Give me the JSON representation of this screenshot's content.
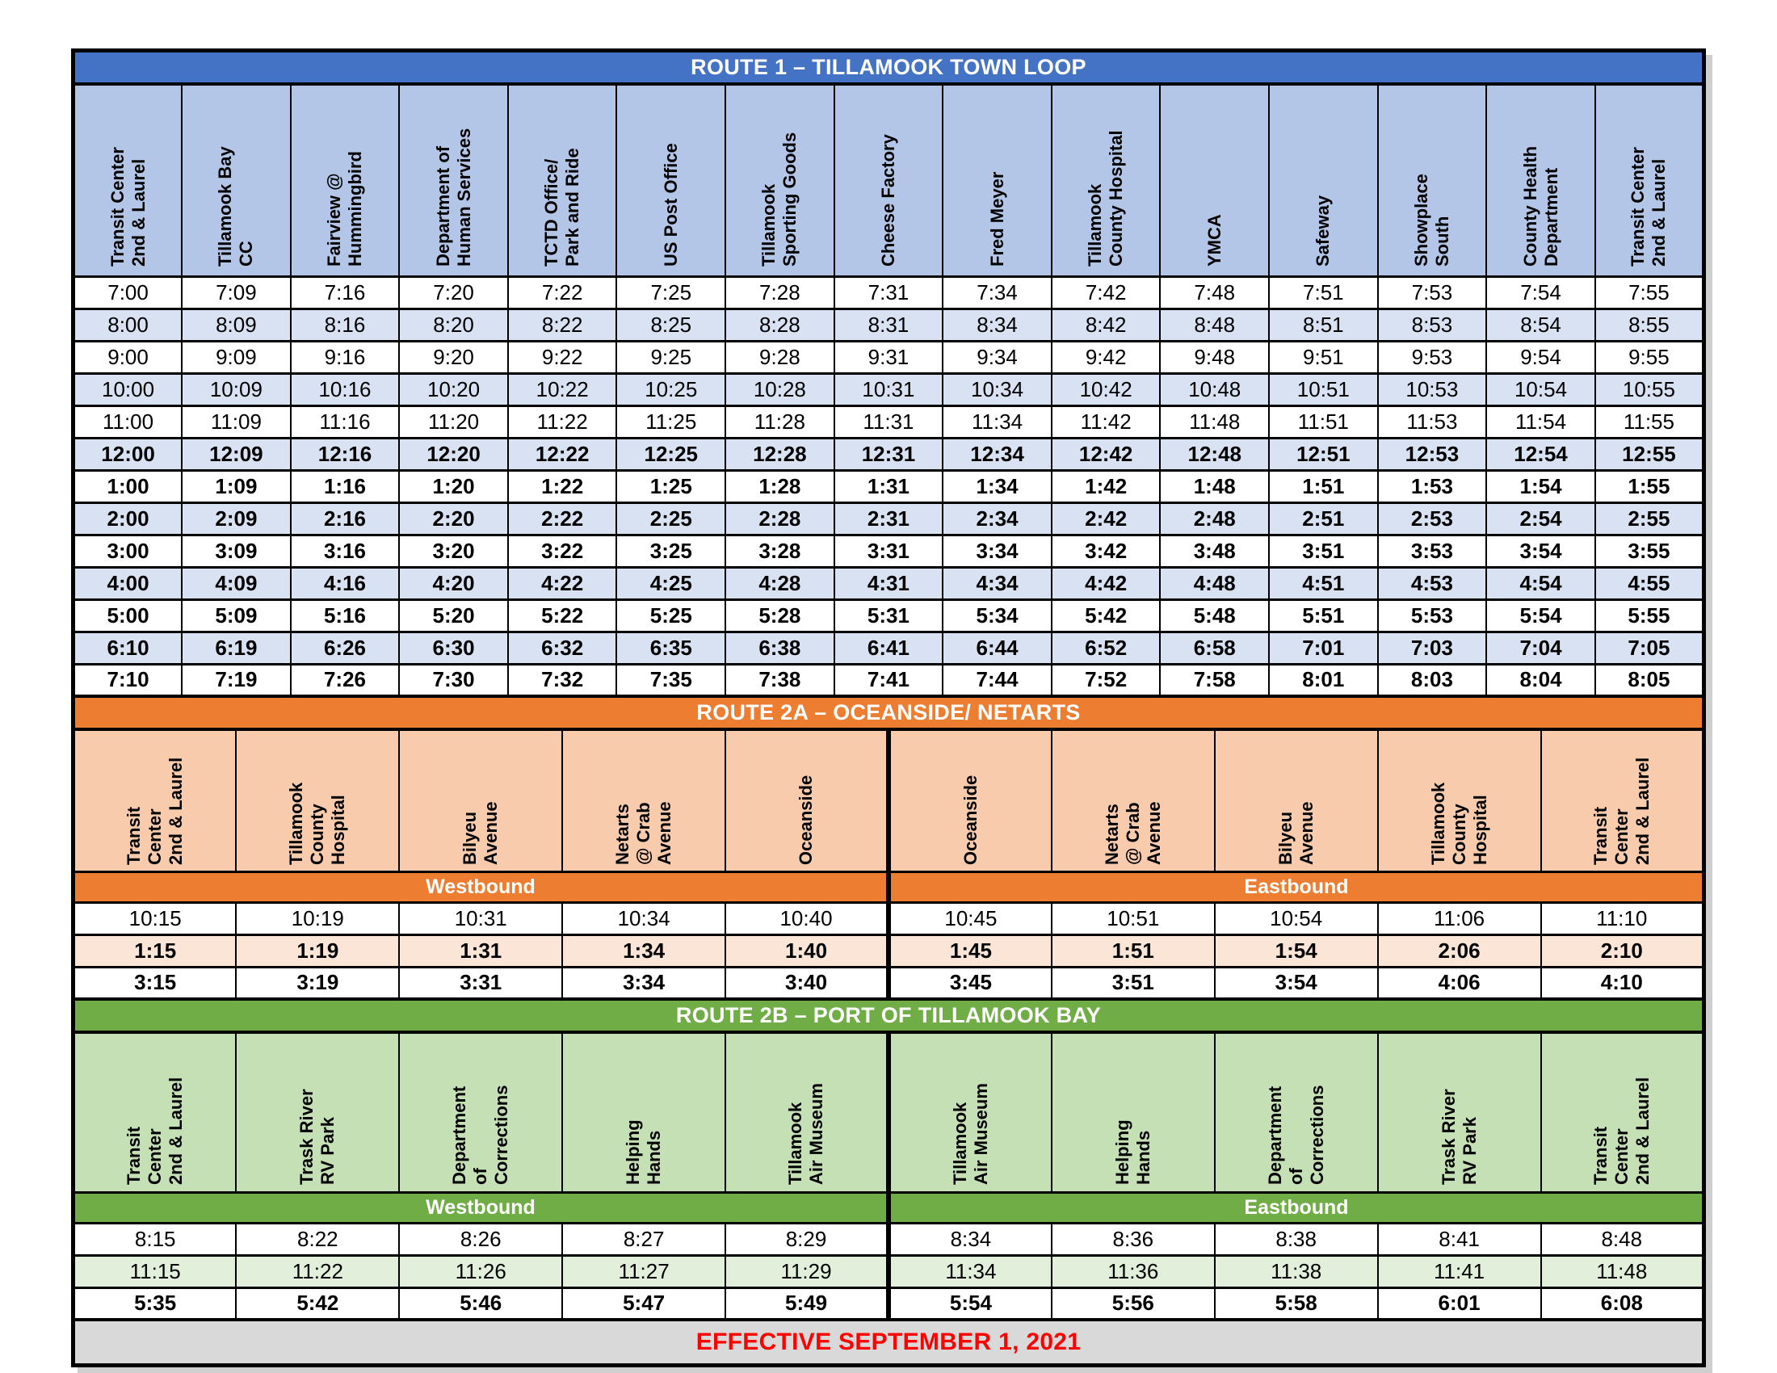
{
  "colors": {
    "route1_title_bg": "#4472C4",
    "route1_header_bg": "#B4C6E7",
    "route1_shaded_row_bg": "#D9E2F3",
    "route2a_title_bg": "#ED7D31",
    "route2a_header_bg": "#F8CBAD",
    "route2a_shaded_row_bg": "#FBE5D6",
    "route2b_title_bg": "#70AD47",
    "route2b_header_bg": "#C5E0B4",
    "route2b_shaded_row_bg": "#E2EFDA",
    "footer_bg": "#D9D9D9",
    "footer_text": "#FF0000",
    "border": "#000000",
    "title_text": "#FFFFFF"
  },
  "route1": {
    "title": "ROUTE 1 – TILLAMOOK TOWN LOOP",
    "stops": [
      "Transit Center\n2nd & Laurel",
      "Tillamook Bay\nCC",
      "Fairview @\nHummingbird",
      "Department of\nHuman Services",
      "TCTD Office/\nPark and Ride",
      "US Post Office",
      "Tillamook\nSporting Goods",
      "Cheese Factory",
      "Fred Meyer",
      "Tillamook\nCounty Hospital",
      "YMCA",
      "Safeway",
      "Showplace\nSouth",
      "County Health\nDepartment",
      "Transit Center\n2nd & Laurel"
    ],
    "rows": [
      {
        "bold": false,
        "shaded": false,
        "times": [
          "7:00",
          "7:09",
          "7:16",
          "7:20",
          "7:22",
          "7:25",
          "7:28",
          "7:31",
          "7:34",
          "7:42",
          "7:48",
          "7:51",
          "7:53",
          "7:54",
          "7:55"
        ]
      },
      {
        "bold": false,
        "shaded": true,
        "times": [
          "8:00",
          "8:09",
          "8:16",
          "8:20",
          "8:22",
          "8:25",
          "8:28",
          "8:31",
          "8:34",
          "8:42",
          "8:48",
          "8:51",
          "8:53",
          "8:54",
          "8:55"
        ]
      },
      {
        "bold": false,
        "shaded": false,
        "times": [
          "9:00",
          "9:09",
          "9:16",
          "9:20",
          "9:22",
          "9:25",
          "9:28",
          "9:31",
          "9:34",
          "9:42",
          "9:48",
          "9:51",
          "9:53",
          "9:54",
          "9:55"
        ]
      },
      {
        "bold": false,
        "shaded": true,
        "times": [
          "10:00",
          "10:09",
          "10:16",
          "10:20",
          "10:22",
          "10:25",
          "10:28",
          "10:31",
          "10:34",
          "10:42",
          "10:48",
          "10:51",
          "10:53",
          "10:54",
          "10:55"
        ]
      },
      {
        "bold": false,
        "shaded": false,
        "times": [
          "11:00",
          "11:09",
          "11:16",
          "11:20",
          "11:22",
          "11:25",
          "11:28",
          "11:31",
          "11:34",
          "11:42",
          "11:48",
          "11:51",
          "11:53",
          "11:54",
          "11:55"
        ]
      },
      {
        "bold": true,
        "shaded": true,
        "times": [
          "12:00",
          "12:09",
          "12:16",
          "12:20",
          "12:22",
          "12:25",
          "12:28",
          "12:31",
          "12:34",
          "12:42",
          "12:48",
          "12:51",
          "12:53",
          "12:54",
          "12:55"
        ]
      },
      {
        "bold": true,
        "shaded": false,
        "times": [
          "1:00",
          "1:09",
          "1:16",
          "1:20",
          "1:22",
          "1:25",
          "1:28",
          "1:31",
          "1:34",
          "1:42",
          "1:48",
          "1:51",
          "1:53",
          "1:54",
          "1:55"
        ]
      },
      {
        "bold": true,
        "shaded": true,
        "times": [
          "2:00",
          "2:09",
          "2:16",
          "2:20",
          "2:22",
          "2:25",
          "2:28",
          "2:31",
          "2:34",
          "2:42",
          "2:48",
          "2:51",
          "2:53",
          "2:54",
          "2:55"
        ]
      },
      {
        "bold": true,
        "shaded": false,
        "times": [
          "3:00",
          "3:09",
          "3:16",
          "3:20",
          "3:22",
          "3:25",
          "3:28",
          "3:31",
          "3:34",
          "3:42",
          "3:48",
          "3:51",
          "3:53",
          "3:54",
          "3:55"
        ]
      },
      {
        "bold": true,
        "shaded": true,
        "times": [
          "4:00",
          "4:09",
          "4:16",
          "4:20",
          "4:22",
          "4:25",
          "4:28",
          "4:31",
          "4:34",
          "4:42",
          "4:48",
          "4:51",
          "4:53",
          "4:54",
          "4:55"
        ]
      },
      {
        "bold": true,
        "shaded": false,
        "times": [
          "5:00",
          "5:09",
          "5:16",
          "5:20",
          "5:22",
          "5:25",
          "5:28",
          "5:31",
          "5:34",
          "5:42",
          "5:48",
          "5:51",
          "5:53",
          "5:54",
          "5:55"
        ]
      },
      {
        "bold": true,
        "shaded": true,
        "times": [
          "6:10",
          "6:19",
          "6:26",
          "6:30",
          "6:32",
          "6:35",
          "6:38",
          "6:41",
          "6:44",
          "6:52",
          "6:58",
          "7:01",
          "7:03",
          "7:04",
          "7:05"
        ]
      },
      {
        "bold": true,
        "shaded": false,
        "times": [
          "7:10",
          "7:19",
          "7:26",
          "7:30",
          "7:32",
          "7:35",
          "7:38",
          "7:41",
          "7:44",
          "7:52",
          "7:58",
          "8:01",
          "8:03",
          "8:04",
          "8:05"
        ]
      }
    ]
  },
  "route2a": {
    "title": "ROUTE 2A – OCEANSIDE/ NETARTS",
    "westbound_label": "Westbound",
    "eastbound_label": "Eastbound",
    "westbound_stops": [
      "Transit\nCenter\n2nd & Laurel",
      "Tillamook\nCounty\nHospital",
      "Bilyeu\nAvenue",
      "Netarts\n@ Crab\nAvenue",
      "Oceanside"
    ],
    "eastbound_stops": [
      "Oceanside",
      "Netarts\n@ Crab\nAvenue",
      "Bilyeu\nAvenue",
      "Tillamook\nCounty\nHospital",
      "Transit\nCenter\n2nd & Laurel"
    ],
    "rows": [
      {
        "bold": false,
        "shaded": false,
        "west": [
          "10:15",
          "10:19",
          "10:31",
          "10:34",
          "10:40"
        ],
        "east": [
          "10:45",
          "10:51",
          "10:54",
          "11:06",
          "11:10"
        ]
      },
      {
        "bold": true,
        "shaded": true,
        "west": [
          "1:15",
          "1:19",
          "1:31",
          "1:34",
          "1:40"
        ],
        "east": [
          "1:45",
          "1:51",
          "1:54",
          "2:06",
          "2:10"
        ]
      },
      {
        "bold": true,
        "shaded": false,
        "west": [
          "3:15",
          "3:19",
          "3:31",
          "3:34",
          "3:40"
        ],
        "east": [
          "3:45",
          "3:51",
          "3:54",
          "4:06",
          "4:10"
        ]
      }
    ]
  },
  "route2b": {
    "title": "ROUTE 2B – PORT OF TILLAMOOK BAY",
    "westbound_label": "Westbound",
    "eastbound_label": "Eastbound",
    "westbound_stops": [
      "Transit\nCenter\n2nd & Laurel",
      "Trask River\nRV Park",
      "Department\nof\nCorrections",
      "Helping\nHands",
      "Tillamook\nAir Museum"
    ],
    "eastbound_stops": [
      "Tillamook\nAir Museum",
      "Helping\nHands",
      "Department\nof\nCorrections",
      "Trask River\nRV Park",
      "Transit\nCenter\n2nd & Laurel"
    ],
    "rows": [
      {
        "bold": false,
        "shaded": false,
        "west": [
          "8:15",
          "8:22",
          "8:26",
          "8:27",
          "8:29"
        ],
        "east": [
          "8:34",
          "8:36",
          "8:38",
          "8:41",
          "8:48"
        ]
      },
      {
        "bold": false,
        "shaded": true,
        "west": [
          "11:15",
          "11:22",
          "11:26",
          "11:27",
          "11:29"
        ],
        "east": [
          "11:34",
          "11:36",
          "11:38",
          "11:41",
          "11:48"
        ]
      },
      {
        "bold": true,
        "shaded": false,
        "west": [
          "5:35",
          "5:42",
          "5:46",
          "5:47",
          "5:49"
        ],
        "east": [
          "5:54",
          "5:56",
          "5:58",
          "6:01",
          "6:08"
        ]
      }
    ]
  },
  "footer": {
    "text": "EFFECTIVE SEPTEMBER 1, 2021"
  }
}
